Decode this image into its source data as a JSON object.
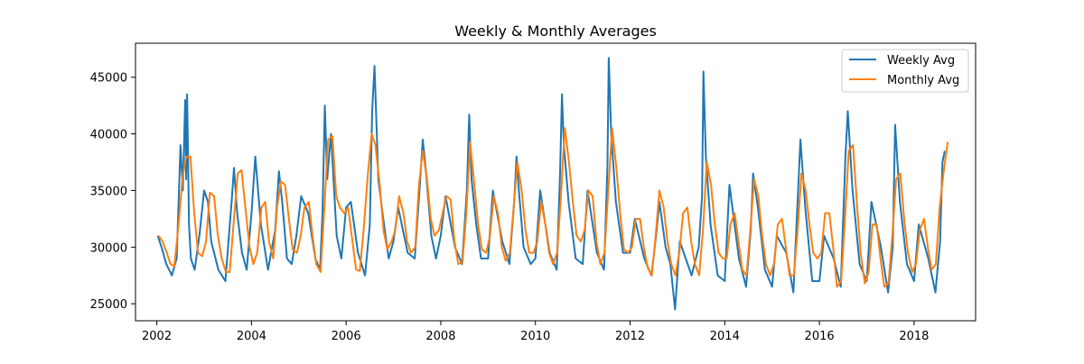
{
  "chart_data": {
    "type": "line",
    "title": "Weekly & Monthly Averages",
    "xlabel": "",
    "ylabel": "",
    "xlim": [
      2001.55,
      2019.3
    ],
    "ylim": [
      23500,
      48000
    ],
    "x_ticks": [
      2002,
      2004,
      2006,
      2008,
      2010,
      2012,
      2014,
      2016,
      2018
    ],
    "y_ticks": [
      25000,
      30000,
      35000,
      40000,
      45000
    ],
    "grid": false,
    "legend": {
      "placement": "top-right"
    },
    "colors": {
      "weekly": "#1f77b4",
      "monthly": "#ff7f0e"
    },
    "series": [
      {
        "name": "Weekly Avg",
        "x": [
          2002.02,
          2002.1,
          2002.2,
          2002.32,
          2002.42,
          2002.5,
          2002.55,
          2002.6,
          2002.62,
          2002.64,
          2002.66,
          2002.68,
          2002.72,
          2002.8,
          2002.9,
          2003.0,
          2003.08,
          2003.15,
          2003.3,
          2003.45,
          2003.58,
          2003.63,
          2003.7,
          2003.8,
          2003.9,
          2004.0,
          2004.08,
          2004.2,
          2004.35,
          2004.5,
          2004.58,
          2004.65,
          2004.75,
          2004.85,
          2004.95,
          2005.05,
          2005.2,
          2005.35,
          2005.45,
          2005.5,
          2005.55,
          2005.6,
          2005.68,
          2005.8,
          2005.9,
          2006.0,
          2006.1,
          2006.25,
          2006.4,
          2006.5,
          2006.55,
          2006.6,
          2006.68,
          2006.8,
          2006.9,
          2007.0,
          2007.1,
          2007.3,
          2007.45,
          2007.55,
          2007.62,
          2007.68,
          2007.8,
          2007.9,
          2008.0,
          2008.1,
          2008.3,
          2008.45,
          2008.55,
          2008.6,
          2008.65,
          2008.75,
          2008.85,
          2009.0,
          2009.1,
          2009.3,
          2009.45,
          2009.55,
          2009.6,
          2009.65,
          2009.75,
          2009.9,
          2010.0,
          2010.1,
          2010.3,
          2010.45,
          2010.52,
          2010.56,
          2010.6,
          2010.7,
          2010.85,
          2011.0,
          2011.1,
          2011.3,
          2011.45,
          2011.52,
          2011.55,
          2011.6,
          2011.7,
          2011.85,
          2012.0,
          2012.1,
          2012.3,
          2012.45,
          2012.55,
          2012.62,
          2012.75,
          2012.85,
          2012.95,
          2013.05,
          2013.3,
          2013.45,
          2013.52,
          2013.55,
          2013.6,
          2013.7,
          2013.85,
          2014.0,
          2014.1,
          2014.3,
          2014.45,
          2014.55,
          2014.6,
          2014.7,
          2014.85,
          2015.0,
          2015.1,
          2015.3,
          2015.45,
          2015.55,
          2015.6,
          2015.7,
          2015.85,
          2016.0,
          2016.1,
          2016.3,
          2016.45,
          2016.55,
          2016.6,
          2016.7,
          2016.85,
          2017.0,
          2017.1,
          2017.3,
          2017.45,
          2017.55,
          2017.6,
          2017.7,
          2017.85,
          2018.0,
          2018.1,
          2018.3,
          2018.45,
          2018.55,
          2018.6,
          2018.65
        ],
        "values": [
          31000,
          30000,
          28500,
          27500,
          29000,
          39000,
          35000,
          43000,
          36000,
          43500,
          38000,
          32000,
          29000,
          28000,
          31000,
          35000,
          34000,
          30500,
          28000,
          27000,
          34000,
          37000,
          33000,
          29500,
          28000,
          33000,
          38000,
          32000,
          28000,
          31500,
          36700,
          34000,
          29000,
          28500,
          31000,
          34500,
          33000,
          29000,
          28000,
          33000,
          42500,
          36000,
          40000,
          31000,
          29000,
          33500,
          34000,
          29500,
          27500,
          32000,
          42000,
          46000,
          36000,
          32000,
          29000,
          30500,
          33500,
          29500,
          29000,
          35000,
          39500,
          37000,
          31000,
          29000,
          31000,
          34500,
          30000,
          28500,
          35000,
          41700,
          36000,
          32000,
          29000,
          29000,
          35000,
          30500,
          28500,
          34000,
          38000,
          35000,
          30000,
          28500,
          29000,
          35000,
          29500,
          28000,
          36500,
          43500,
          39000,
          34000,
          29000,
          28500,
          35000,
          29500,
          28000,
          37000,
          46700,
          40000,
          34000,
          29500,
          29500,
          32500,
          29000,
          27500,
          31000,
          34000,
          30000,
          28500,
          24500,
          30500,
          27500,
          30000,
          34500,
          45500,
          38000,
          32000,
          27500,
          27000,
          35500,
          29000,
          26500,
          31500,
          36500,
          33500,
          28000,
          26500,
          31000,
          29500,
          26000,
          35000,
          39500,
          33500,
          27000,
          27000,
          31000,
          29000,
          26500,
          38000,
          42000,
          35000,
          28500,
          27000,
          34000,
          30000,
          26000,
          30000,
          40800,
          34000,
          28500,
          27000,
          32000,
          29000,
          26000,
          30500,
          37500,
          38500
        ]
      },
      {
        "name": "Monthly Avg",
        "x": [
          2002.04,
          2002.12,
          2002.21,
          2002.29,
          2002.37,
          2002.46,
          2002.54,
          2002.62,
          2002.71,
          2002.79,
          2002.87,
          2002.96,
          2003.04,
          2003.12,
          2003.21,
          2003.29,
          2003.37,
          2003.46,
          2003.54,
          2003.62,
          2003.71,
          2003.79,
          2003.87,
          2003.96,
          2004.04,
          2004.12,
          2004.21,
          2004.29,
          2004.37,
          2004.46,
          2004.54,
          2004.62,
          2004.71,
          2004.79,
          2004.87,
          2004.96,
          2005.04,
          2005.12,
          2005.21,
          2005.29,
          2005.37,
          2005.46,
          2005.54,
          2005.62,
          2005.71,
          2005.79,
          2005.87,
          2005.96,
          2006.04,
          2006.12,
          2006.21,
          2006.29,
          2006.37,
          2006.46,
          2006.54,
          2006.62,
          2006.71,
          2006.79,
          2006.87,
          2006.96,
          2007.04,
          2007.12,
          2007.21,
          2007.29,
          2007.37,
          2007.46,
          2007.54,
          2007.62,
          2007.71,
          2007.79,
          2007.87,
          2007.96,
          2008.04,
          2008.12,
          2008.21,
          2008.29,
          2008.37,
          2008.46,
          2008.54,
          2008.62,
          2008.71,
          2008.79,
          2008.87,
          2008.96,
          2009.04,
          2009.12,
          2009.21,
          2009.29,
          2009.37,
          2009.46,
          2009.54,
          2009.62,
          2009.71,
          2009.79,
          2009.87,
          2009.96,
          2010.04,
          2010.12,
          2010.21,
          2010.29,
          2010.37,
          2010.46,
          2010.54,
          2010.62,
          2010.71,
          2010.79,
          2010.87,
          2010.96,
          2011.04,
          2011.12,
          2011.21,
          2011.29,
          2011.37,
          2011.46,
          2011.54,
          2011.62,
          2011.71,
          2011.79,
          2011.87,
          2011.96,
          2012.04,
          2012.12,
          2012.21,
          2012.29,
          2012.37,
          2012.46,
          2012.54,
          2012.62,
          2012.71,
          2012.79,
          2012.87,
          2012.96,
          2013.04,
          2013.12,
          2013.21,
          2013.29,
          2013.37,
          2013.46,
          2013.54,
          2013.62,
          2013.71,
          2013.79,
          2013.87,
          2013.96,
          2014.04,
          2014.12,
          2014.21,
          2014.29,
          2014.37,
          2014.46,
          2014.54,
          2014.62,
          2014.71,
          2014.79,
          2014.87,
          2014.96,
          2015.04,
          2015.12,
          2015.21,
          2015.29,
          2015.37,
          2015.46,
          2015.54,
          2015.62,
          2015.71,
          2015.79,
          2015.87,
          2015.96,
          2016.04,
          2016.12,
          2016.21,
          2016.29,
          2016.37,
          2016.46,
          2016.54,
          2016.62,
          2016.71,
          2016.79,
          2016.87,
          2016.96,
          2017.04,
          2017.12,
          2017.21,
          2017.29,
          2017.37,
          2017.46,
          2017.54,
          2017.62,
          2017.71,
          2017.79,
          2017.87,
          2017.96,
          2018.04,
          2018.12,
          2018.21,
          2018.29,
          2018.37,
          2018.46,
          2018.54,
          2018.62,
          2018.71
        ],
        "values": [
          31000,
          30500,
          29500,
          28500,
          28300,
          32000,
          36000,
          38000,
          38000,
          33000,
          29500,
          29200,
          30500,
          34800,
          34500,
          31000,
          29000,
          27800,
          27800,
          32000,
          36500,
          36800,
          33500,
          30000,
          28500,
          29500,
          33500,
          34000,
          30500,
          29000,
          33500,
          35800,
          35500,
          32500,
          29800,
          29500,
          31000,
          33500,
          34000,
          31000,
          28500,
          27800,
          33500,
          39500,
          39800,
          34500,
          33500,
          33000,
          33500,
          31000,
          28000,
          27900,
          31500,
          36500,
          40000,
          39000,
          35500,
          31500,
          29800,
          30500,
          31500,
          34500,
          33000,
          30500,
          29500,
          30000,
          35500,
          38500,
          36000,
          32500,
          31000,
          31500,
          33000,
          34500,
          34200,
          30500,
          28500,
          28700,
          33000,
          39300,
          35500,
          32000,
          29800,
          29500,
          31000,
          34500,
          33000,
          30000,
          28800,
          29500,
          33500,
          37500,
          35000,
          31500,
          29500,
          29500,
          30500,
          34000,
          32000,
          29500,
          28500,
          29500,
          34500,
          40500,
          37500,
          34000,
          31000,
          30500,
          31500,
          35000,
          34500,
          30500,
          28500,
          29500,
          35000,
          40500,
          37000,
          33000,
          29800,
          29500,
          30000,
          32500,
          32500,
          30000,
          28200,
          27500,
          31000,
          35000,
          33500,
          30500,
          28500,
          27500,
          29500,
          33000,
          33500,
          30500,
          28500,
          27500,
          31500,
          37500,
          35500,
          32000,
          29500,
          29000,
          29000,
          32000,
          33000,
          30500,
          28000,
          27500,
          31500,
          36000,
          34500,
          31000,
          28500,
          27500,
          28500,
          32000,
          32500,
          30000,
          27500,
          27500,
          31500,
          36500,
          35000,
          32000,
          29500,
          29000,
          29500,
          33000,
          33000,
          30000,
          26500,
          27000,
          32500,
          38500,
          39000,
          34000,
          29500,
          26800,
          27800,
          32000,
          32000,
          29000,
          26500,
          26800,
          31000,
          36000,
          36500,
          32500,
          29500,
          27800,
          28500,
          31500,
          32500,
          30000,
          28000,
          28500,
          33500,
          36500,
          39300
        ]
      }
    ]
  }
}
